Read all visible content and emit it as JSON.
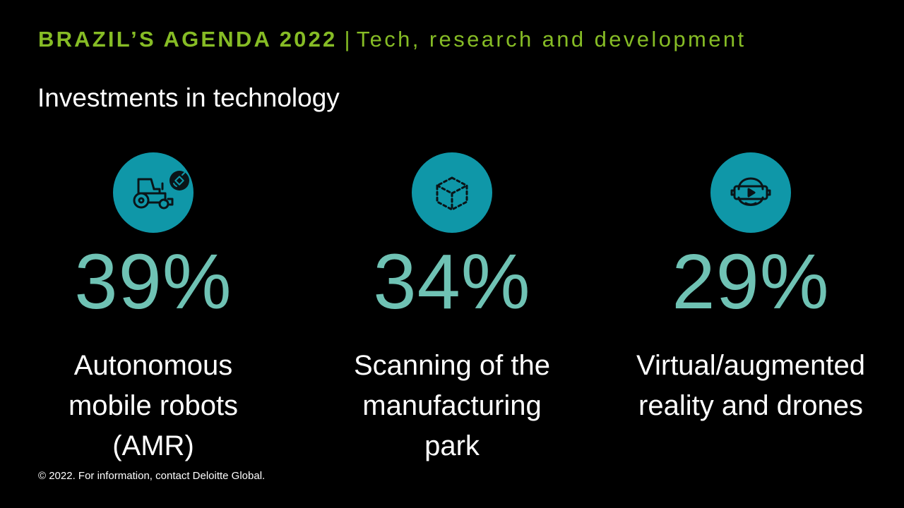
{
  "header": {
    "brand": "BRAZIL’S AGENDA 2022",
    "separator": "|",
    "topic": "Tech, research and development"
  },
  "subtitle": "Investments in technology",
  "colors": {
    "background": "#000000",
    "header_green": "#86bc25",
    "icon_circle": "#0f97a8",
    "percent_teal": "#6fc2b4",
    "text": "#ffffff"
  },
  "stats": [
    {
      "icon": "autonomous-tractor-icon",
      "value": "39%",
      "label_lines": [
        "Autonomous",
        "mobile robots",
        "(AMR)"
      ]
    },
    {
      "icon": "scan-cube-icon",
      "value": "34%",
      "label_lines": [
        "Scanning of the",
        "manufacturing",
        "park"
      ]
    },
    {
      "icon": "vr-headset-icon",
      "value": "29%",
      "label_lines": [
        "Virtual/augmented",
        "reality and drones"
      ]
    }
  ],
  "footer": "© 2022. For information, contact Deloitte Global."
}
